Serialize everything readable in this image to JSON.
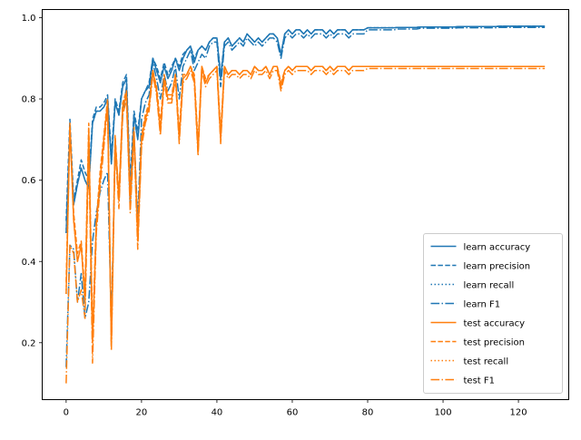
{
  "chart_data": {
    "type": "line",
    "title": "",
    "xlabel": "",
    "ylabel": "",
    "xlim": [
      -6.35,
      133.35
    ],
    "ylim": [
      0.06,
      1.02
    ],
    "x_ticks": [
      0,
      20,
      40,
      60,
      80,
      100,
      120
    ],
    "y_ticks": [
      0.2,
      0.4,
      0.6,
      0.8,
      1.0
    ],
    "x_tick_labels": [
      "0",
      "20",
      "40",
      "60",
      "80",
      "100",
      "120"
    ],
    "y_tick_labels": [
      "0.2",
      "0.4",
      "0.6",
      "0.8",
      "1.0"
    ],
    "grid": false,
    "legend_position": "lower right",
    "x": [
      0,
      1,
      2,
      3,
      4,
      5,
      6,
      7,
      8,
      9,
      10,
      11,
      12,
      13,
      14,
      15,
      16,
      17,
      18,
      19,
      20,
      21,
      22,
      23,
      24,
      25,
      26,
      27,
      28,
      29,
      30,
      31,
      32,
      33,
      34,
      35,
      36,
      37,
      38,
      39,
      40,
      41,
      42,
      43,
      44,
      45,
      46,
      47,
      48,
      49,
      50,
      51,
      52,
      53,
      54,
      55,
      56,
      57,
      58,
      59,
      60,
      61,
      62,
      63,
      64,
      65,
      66,
      67,
      68,
      69,
      70,
      71,
      72,
      73,
      74,
      75,
      76,
      77,
      78,
      79,
      80,
      81,
      82,
      83,
      84,
      85,
      86,
      87,
      88,
      89,
      90,
      91,
      92,
      93,
      94,
      95,
      96,
      97,
      98,
      99,
      100,
      101,
      102,
      103,
      104,
      105,
      106,
      107,
      108,
      109,
      110,
      111,
      112,
      113,
      114,
      115,
      116,
      117,
      118,
      119,
      120,
      121,
      122,
      123,
      124,
      125,
      126,
      127
    ],
    "series": [
      {
        "name": "learn accuracy",
        "color": "#1f77b4",
        "dash": "solid",
        "values": [
          0.47,
          0.72,
          0.54,
          0.59,
          0.63,
          0.6,
          0.58,
          0.74,
          0.77,
          0.77,
          0.78,
          0.8,
          0.64,
          0.79,
          0.76,
          0.83,
          0.85,
          0.57,
          0.76,
          0.7,
          0.8,
          0.82,
          0.83,
          0.9,
          0.87,
          0.84,
          0.88,
          0.85,
          0.87,
          0.9,
          0.87,
          0.9,
          0.92,
          0.93,
          0.89,
          0.92,
          0.93,
          0.92,
          0.94,
          0.95,
          0.95,
          0.85,
          0.94,
          0.95,
          0.93,
          0.94,
          0.95,
          0.94,
          0.96,
          0.95,
          0.94,
          0.95,
          0.94,
          0.95,
          0.96,
          0.96,
          0.95,
          0.91,
          0.96,
          0.97,
          0.96,
          0.97,
          0.97,
          0.96,
          0.97,
          0.96,
          0.97,
          0.97,
          0.97,
          0.96,
          0.97,
          0.96,
          0.97,
          0.97,
          0.97,
          0.96,
          0.97,
          0.97,
          0.97,
          0.97,
          0.975,
          0.975,
          0.975,
          0.975,
          0.975,
          0.975,
          0.975,
          0.975,
          0.976,
          0.976,
          0.976,
          0.976,
          0.976,
          0.976,
          0.977,
          0.977,
          0.977,
          0.977,
          0.977,
          0.977,
          0.977,
          0.977,
          0.977,
          0.977,
          0.978,
          0.978,
          0.978,
          0.978,
          0.978,
          0.978,
          0.978,
          0.978,
          0.978,
          0.978,
          0.978,
          0.979,
          0.979,
          0.979,
          0.979,
          0.979,
          0.979,
          0.979,
          0.979,
          0.979,
          0.979,
          0.979,
          0.979,
          0.979
        ]
      },
      {
        "name": "learn precision",
        "color": "#1f77b4",
        "dash": "dashed",
        "values": [
          0.5,
          0.75,
          0.55,
          0.6,
          0.65,
          0.62,
          0.6,
          0.75,
          0.78,
          0.78,
          0.79,
          0.81,
          0.66,
          0.8,
          0.77,
          0.84,
          0.86,
          0.6,
          0.77,
          0.72,
          0.8,
          0.82,
          0.84,
          0.9,
          0.88,
          0.85,
          0.89,
          0.86,
          0.88,
          0.9,
          0.88,
          0.91,
          0.92,
          0.93,
          0.9,
          0.92,
          0.93,
          0.92,
          0.94,
          0.95,
          0.95,
          0.86,
          0.94,
          0.95,
          0.93,
          0.94,
          0.95,
          0.94,
          0.96,
          0.95,
          0.94,
          0.95,
          0.94,
          0.95,
          0.96,
          0.96,
          0.95,
          0.91,
          0.96,
          0.97,
          0.96,
          0.97,
          0.97,
          0.96,
          0.97,
          0.96,
          0.97,
          0.97,
          0.97,
          0.96,
          0.97,
          0.96,
          0.97,
          0.97,
          0.97,
          0.96,
          0.97,
          0.97,
          0.97,
          0.97,
          0.975,
          0.975,
          0.975,
          0.975,
          0.975,
          0.975,
          0.975,
          0.975,
          0.976,
          0.976,
          0.976,
          0.976,
          0.976,
          0.976,
          0.977,
          0.977,
          0.977,
          0.977,
          0.977,
          0.977,
          0.977,
          0.977,
          0.977,
          0.977,
          0.978,
          0.978,
          0.978,
          0.978,
          0.978,
          0.978,
          0.978,
          0.978,
          0.978,
          0.978,
          0.978,
          0.979,
          0.979,
          0.979,
          0.979,
          0.979,
          0.979,
          0.979,
          0.979,
          0.979,
          0.979,
          0.979,
          0.979,
          0.979
        ]
      },
      {
        "name": "learn recall",
        "color": "#1f77b4",
        "dash": "dotted",
        "values": [
          0.47,
          0.72,
          0.54,
          0.59,
          0.63,
          0.6,
          0.58,
          0.74,
          0.77,
          0.77,
          0.78,
          0.8,
          0.64,
          0.79,
          0.76,
          0.83,
          0.85,
          0.57,
          0.76,
          0.7,
          0.8,
          0.82,
          0.83,
          0.9,
          0.87,
          0.84,
          0.88,
          0.85,
          0.87,
          0.9,
          0.87,
          0.9,
          0.92,
          0.93,
          0.89,
          0.92,
          0.93,
          0.92,
          0.94,
          0.95,
          0.95,
          0.85,
          0.94,
          0.95,
          0.93,
          0.94,
          0.95,
          0.94,
          0.96,
          0.95,
          0.94,
          0.95,
          0.94,
          0.95,
          0.96,
          0.96,
          0.95,
          0.91,
          0.96,
          0.97,
          0.96,
          0.97,
          0.97,
          0.96,
          0.97,
          0.96,
          0.97,
          0.97,
          0.97,
          0.96,
          0.97,
          0.96,
          0.97,
          0.97,
          0.97,
          0.96,
          0.97,
          0.97,
          0.97,
          0.97,
          0.975,
          0.975,
          0.975,
          0.975,
          0.975,
          0.975,
          0.975,
          0.975,
          0.976,
          0.976,
          0.976,
          0.976,
          0.976,
          0.976,
          0.977,
          0.977,
          0.977,
          0.977,
          0.977,
          0.977,
          0.977,
          0.977,
          0.977,
          0.977,
          0.978,
          0.978,
          0.978,
          0.978,
          0.978,
          0.978,
          0.978,
          0.978,
          0.978,
          0.978,
          0.978,
          0.979,
          0.979,
          0.979,
          0.979,
          0.979,
          0.979,
          0.979,
          0.979,
          0.979,
          0.979,
          0.979,
          0.979,
          0.979
        ]
      },
      {
        "name": "learn F1",
        "color": "#1f77b4",
        "dash": "dashdot",
        "values": [
          0.14,
          0.44,
          0.43,
          0.3,
          0.37,
          0.26,
          0.3,
          0.45,
          0.52,
          0.57,
          0.6,
          0.62,
          0.25,
          0.68,
          0.56,
          0.76,
          0.83,
          0.53,
          0.72,
          0.5,
          0.75,
          0.79,
          0.81,
          0.89,
          0.85,
          0.8,
          0.86,
          0.82,
          0.84,
          0.88,
          0.8,
          0.88,
          0.9,
          0.92,
          0.87,
          0.89,
          0.91,
          0.9,
          0.93,
          0.94,
          0.94,
          0.83,
          0.93,
          0.94,
          0.92,
          0.93,
          0.94,
          0.93,
          0.95,
          0.94,
          0.93,
          0.94,
          0.93,
          0.94,
          0.95,
          0.95,
          0.94,
          0.9,
          0.95,
          0.96,
          0.95,
          0.96,
          0.96,
          0.95,
          0.96,
          0.95,
          0.96,
          0.96,
          0.96,
          0.95,
          0.96,
          0.95,
          0.96,
          0.96,
          0.96,
          0.95,
          0.96,
          0.96,
          0.96,
          0.96,
          0.97,
          0.97,
          0.97,
          0.97,
          0.97,
          0.97,
          0.97,
          0.97,
          0.972,
          0.972,
          0.972,
          0.972,
          0.972,
          0.972,
          0.974,
          0.974,
          0.974,
          0.974,
          0.974,
          0.974,
          0.974,
          0.974,
          0.974,
          0.974,
          0.975,
          0.975,
          0.975,
          0.975,
          0.975,
          0.975,
          0.975,
          0.975,
          0.975,
          0.975,
          0.975,
          0.976,
          0.976,
          0.976,
          0.976,
          0.976,
          0.976,
          0.976,
          0.976,
          0.976,
          0.976,
          0.976,
          0.976,
          0.976
        ]
      },
      {
        "name": "test accuracy",
        "color": "#ff7f0e",
        "dash": "solid",
        "values": [
          0.32,
          0.73,
          0.5,
          0.4,
          0.44,
          0.3,
          0.72,
          0.2,
          0.49,
          0.6,
          0.7,
          0.79,
          0.19,
          0.7,
          0.55,
          0.78,
          0.81,
          0.55,
          0.72,
          0.45,
          0.7,
          0.75,
          0.78,
          0.87,
          0.82,
          0.72,
          0.85,
          0.8,
          0.8,
          0.86,
          0.7,
          0.85,
          0.86,
          0.88,
          0.85,
          0.67,
          0.88,
          0.84,
          0.86,
          0.87,
          0.88,
          0.7,
          0.88,
          0.86,
          0.87,
          0.87,
          0.86,
          0.87,
          0.87,
          0.86,
          0.88,
          0.87,
          0.87,
          0.88,
          0.86,
          0.88,
          0.88,
          0.83,
          0.87,
          0.88,
          0.87,
          0.88,
          0.88,
          0.88,
          0.88,
          0.87,
          0.88,
          0.88,
          0.88,
          0.87,
          0.88,
          0.87,
          0.88,
          0.88,
          0.88,
          0.87,
          0.88,
          0.88,
          0.88,
          0.88,
          0.88,
          0.88,
          0.88,
          0.88,
          0.88,
          0.88,
          0.88,
          0.88,
          0.88,
          0.88,
          0.88,
          0.88,
          0.88,
          0.88,
          0.88,
          0.88,
          0.88,
          0.88,
          0.88,
          0.88,
          0.88,
          0.88,
          0.88,
          0.88,
          0.88,
          0.88,
          0.88,
          0.88,
          0.88,
          0.88,
          0.88,
          0.88,
          0.88,
          0.88,
          0.88,
          0.88,
          0.88,
          0.88,
          0.88,
          0.88,
          0.88,
          0.88,
          0.88,
          0.88,
          0.88,
          0.88,
          0.88,
          0.88
        ]
      },
      {
        "name": "test precision",
        "color": "#ff7f0e",
        "dash": "dashed",
        "values": [
          0.35,
          0.74,
          0.52,
          0.42,
          0.45,
          0.32,
          0.74,
          0.22,
          0.5,
          0.62,
          0.71,
          0.8,
          0.2,
          0.71,
          0.56,
          0.79,
          0.82,
          0.57,
          0.73,
          0.47,
          0.71,
          0.76,
          0.79,
          0.87,
          0.83,
          0.74,
          0.86,
          0.81,
          0.81,
          0.86,
          0.72,
          0.86,
          0.86,
          0.88,
          0.86,
          0.69,
          0.88,
          0.85,
          0.86,
          0.87,
          0.88,
          0.72,
          0.88,
          0.86,
          0.87,
          0.87,
          0.86,
          0.87,
          0.87,
          0.86,
          0.88,
          0.87,
          0.87,
          0.88,
          0.86,
          0.88,
          0.88,
          0.84,
          0.87,
          0.88,
          0.87,
          0.88,
          0.88,
          0.88,
          0.88,
          0.87,
          0.88,
          0.88,
          0.88,
          0.87,
          0.88,
          0.87,
          0.88,
          0.88,
          0.88,
          0.87,
          0.88,
          0.88,
          0.88,
          0.88,
          0.88,
          0.88,
          0.88,
          0.88,
          0.88,
          0.88,
          0.88,
          0.88,
          0.88,
          0.88,
          0.88,
          0.88,
          0.88,
          0.88,
          0.88,
          0.88,
          0.88,
          0.88,
          0.88,
          0.88,
          0.88,
          0.88,
          0.88,
          0.88,
          0.88,
          0.88,
          0.88,
          0.88,
          0.88,
          0.88,
          0.88,
          0.88,
          0.88,
          0.88,
          0.88,
          0.88,
          0.88,
          0.88,
          0.88,
          0.88,
          0.88,
          0.88,
          0.88,
          0.88,
          0.88,
          0.88,
          0.88,
          0.88
        ]
      },
      {
        "name": "test recall",
        "color": "#ff7f0e",
        "dash": "dotted",
        "values": [
          0.32,
          0.73,
          0.5,
          0.4,
          0.44,
          0.3,
          0.72,
          0.2,
          0.49,
          0.6,
          0.7,
          0.79,
          0.19,
          0.7,
          0.55,
          0.78,
          0.81,
          0.55,
          0.72,
          0.45,
          0.7,
          0.75,
          0.78,
          0.87,
          0.82,
          0.72,
          0.85,
          0.8,
          0.8,
          0.86,
          0.7,
          0.85,
          0.86,
          0.88,
          0.85,
          0.67,
          0.88,
          0.84,
          0.86,
          0.87,
          0.88,
          0.7,
          0.88,
          0.86,
          0.87,
          0.87,
          0.86,
          0.87,
          0.87,
          0.86,
          0.88,
          0.87,
          0.87,
          0.88,
          0.86,
          0.88,
          0.88,
          0.83,
          0.87,
          0.88,
          0.87,
          0.88,
          0.88,
          0.88,
          0.88,
          0.87,
          0.88,
          0.88,
          0.88,
          0.87,
          0.88,
          0.87,
          0.88,
          0.88,
          0.88,
          0.87,
          0.88,
          0.88,
          0.88,
          0.88,
          0.88,
          0.88,
          0.88,
          0.88,
          0.88,
          0.88,
          0.88,
          0.88,
          0.88,
          0.88,
          0.88,
          0.88,
          0.88,
          0.88,
          0.88,
          0.88,
          0.88,
          0.88,
          0.88,
          0.88,
          0.88,
          0.88,
          0.88,
          0.88,
          0.88,
          0.88,
          0.88,
          0.88,
          0.88,
          0.88,
          0.88,
          0.88,
          0.88,
          0.88,
          0.88,
          0.88,
          0.88,
          0.88,
          0.88,
          0.88,
          0.88,
          0.88,
          0.88,
          0.88,
          0.88,
          0.88,
          0.88,
          0.88
        ]
      },
      {
        "name": "test F1",
        "color": "#ff7f0e",
        "dash": "dashdot",
        "values": [
          0.1,
          0.44,
          0.42,
          0.3,
          0.33,
          0.26,
          0.68,
          0.15,
          0.47,
          0.58,
          0.68,
          0.78,
          0.18,
          0.68,
          0.53,
          0.76,
          0.8,
          0.52,
          0.7,
          0.43,
          0.68,
          0.74,
          0.77,
          0.86,
          0.81,
          0.71,
          0.84,
          0.79,
          0.79,
          0.85,
          0.69,
          0.84,
          0.85,
          0.87,
          0.84,
          0.66,
          0.87,
          0.83,
          0.85,
          0.86,
          0.87,
          0.69,
          0.87,
          0.85,
          0.86,
          0.86,
          0.85,
          0.86,
          0.86,
          0.85,
          0.87,
          0.86,
          0.86,
          0.87,
          0.85,
          0.87,
          0.87,
          0.82,
          0.86,
          0.87,
          0.86,
          0.87,
          0.87,
          0.87,
          0.87,
          0.86,
          0.87,
          0.87,
          0.87,
          0.86,
          0.87,
          0.86,
          0.87,
          0.87,
          0.87,
          0.86,
          0.87,
          0.87,
          0.87,
          0.87,
          0.875,
          0.875,
          0.875,
          0.875,
          0.875,
          0.875,
          0.875,
          0.875,
          0.875,
          0.875,
          0.875,
          0.875,
          0.875,
          0.875,
          0.875,
          0.875,
          0.875,
          0.875,
          0.875,
          0.875,
          0.875,
          0.875,
          0.875,
          0.875,
          0.875,
          0.875,
          0.875,
          0.875,
          0.875,
          0.875,
          0.875,
          0.875,
          0.875,
          0.875,
          0.875,
          0.875,
          0.875,
          0.875,
          0.875,
          0.875,
          0.875,
          0.875,
          0.875,
          0.875,
          0.875,
          0.875,
          0.875,
          0.875
        ]
      }
    ]
  }
}
